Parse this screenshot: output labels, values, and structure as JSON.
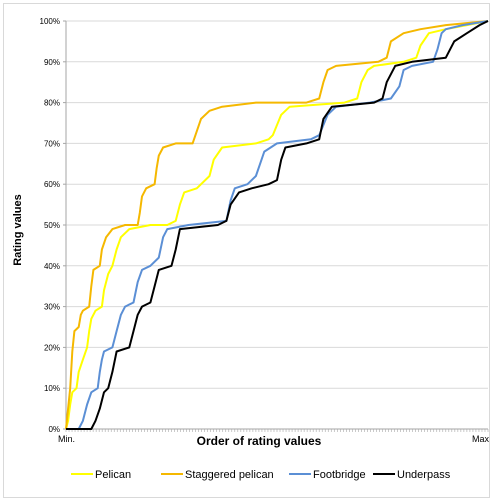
{
  "chart_data": {
    "type": "line",
    "title": "",
    "xlabel": "Order of rating values",
    "ylabel": "Rating values",
    "x_tick_labels": [
      "Min.",
      "Max"
    ],
    "y_ticks": [
      "0%",
      "10%",
      "20%",
      "30%",
      "40%",
      "50%",
      "60%",
      "70%",
      "80%",
      "90%",
      "100%"
    ],
    "ylim": [
      0,
      100
    ],
    "xlim": [
      0,
      1
    ],
    "grid": true,
    "legend_position": "bottom",
    "series": [
      {
        "name": "Pelican",
        "color": "#ffff00",
        "points": [
          [
            0,
            0
          ],
          [
            0.005,
            2
          ],
          [
            0.01,
            6
          ],
          [
            0.015,
            9
          ],
          [
            0.025,
            10
          ],
          [
            0.03,
            14
          ],
          [
            0.04,
            17
          ],
          [
            0.05,
            20
          ],
          [
            0.055,
            24
          ],
          [
            0.06,
            27
          ],
          [
            0.07,
            29
          ],
          [
            0.085,
            30
          ],
          [
            0.09,
            34
          ],
          [
            0.1,
            38
          ],
          [
            0.11,
            40
          ],
          [
            0.12,
            44
          ],
          [
            0.13,
            47
          ],
          [
            0.15,
            49
          ],
          [
            0.2,
            50
          ],
          [
            0.24,
            50
          ],
          [
            0.26,
            51
          ],
          [
            0.27,
            55
          ],
          [
            0.28,
            58
          ],
          [
            0.31,
            59
          ],
          [
            0.34,
            62
          ],
          [
            0.35,
            66
          ],
          [
            0.37,
            69
          ],
          [
            0.45,
            70
          ],
          [
            0.48,
            71
          ],
          [
            0.49,
            72
          ],
          [
            0.51,
            77
          ],
          [
            0.53,
            79
          ],
          [
            0.66,
            80
          ],
          [
            0.69,
            81
          ],
          [
            0.7,
            85
          ],
          [
            0.715,
            88
          ],
          [
            0.73,
            89
          ],
          [
            0.8,
            90
          ],
          [
            0.83,
            91
          ],
          [
            0.84,
            94
          ],
          [
            0.86,
            97
          ],
          [
            0.9,
            98
          ],
          [
            0.95,
            99
          ],
          [
            1,
            100
          ]
        ]
      },
      {
        "name": "Staggered pelican",
        "color": "#f5b800",
        "points": [
          [
            0,
            0
          ],
          [
            0.005,
            5
          ],
          [
            0.01,
            10
          ],
          [
            0.015,
            19
          ],
          [
            0.02,
            24
          ],
          [
            0.03,
            25
          ],
          [
            0.035,
            28
          ],
          [
            0.04,
            29
          ],
          [
            0.055,
            30
          ],
          [
            0.06,
            35
          ],
          [
            0.065,
            39
          ],
          [
            0.08,
            40
          ],
          [
            0.085,
            44
          ],
          [
            0.095,
            47
          ],
          [
            0.11,
            49
          ],
          [
            0.14,
            50
          ],
          [
            0.17,
            50
          ],
          [
            0.175,
            53
          ],
          [
            0.18,
            57
          ],
          [
            0.19,
            59
          ],
          [
            0.21,
            60
          ],
          [
            0.215,
            64
          ],
          [
            0.22,
            67
          ],
          [
            0.23,
            69
          ],
          [
            0.26,
            70
          ],
          [
            0.3,
            70
          ],
          [
            0.31,
            73
          ],
          [
            0.32,
            76
          ],
          [
            0.34,
            78
          ],
          [
            0.37,
            79
          ],
          [
            0.45,
            80
          ],
          [
            0.57,
            80
          ],
          [
            0.6,
            81
          ],
          [
            0.61,
            85
          ],
          [
            0.62,
            88
          ],
          [
            0.64,
            89
          ],
          [
            0.74,
            90
          ],
          [
            0.76,
            91
          ],
          [
            0.77,
            95
          ],
          [
            0.8,
            97
          ],
          [
            0.84,
            98
          ],
          [
            0.9,
            99
          ],
          [
            1,
            100
          ]
        ]
      },
      {
        "name": "Footbridge",
        "color": "#5b8fd5",
        "points": [
          [
            0,
            0
          ],
          [
            0.03,
            0
          ],
          [
            0.04,
            2
          ],
          [
            0.05,
            6
          ],
          [
            0.06,
            9
          ],
          [
            0.075,
            10
          ],
          [
            0.08,
            14
          ],
          [
            0.085,
            17
          ],
          [
            0.09,
            19
          ],
          [
            0.11,
            20
          ],
          [
            0.12,
            24
          ],
          [
            0.13,
            28
          ],
          [
            0.14,
            30
          ],
          [
            0.16,
            31
          ],
          [
            0.17,
            36
          ],
          [
            0.18,
            39
          ],
          [
            0.2,
            40
          ],
          [
            0.22,
            42
          ],
          [
            0.23,
            47
          ],
          [
            0.24,
            49
          ],
          [
            0.29,
            50
          ],
          [
            0.38,
            51
          ],
          [
            0.39,
            56
          ],
          [
            0.4,
            59
          ],
          [
            0.43,
            60
          ],
          [
            0.45,
            62
          ],
          [
            0.46,
            65
          ],
          [
            0.47,
            68
          ],
          [
            0.5,
            70
          ],
          [
            0.58,
            71
          ],
          [
            0.6,
            72
          ],
          [
            0.62,
            77
          ],
          [
            0.64,
            79
          ],
          [
            0.72,
            80
          ],
          [
            0.77,
            81
          ],
          [
            0.79,
            84
          ],
          [
            0.8,
            88
          ],
          [
            0.82,
            89
          ],
          [
            0.87,
            90
          ],
          [
            0.88,
            93
          ],
          [
            0.89,
            97
          ],
          [
            0.9,
            98
          ],
          [
            0.94,
            99
          ],
          [
            1,
            100
          ]
        ]
      },
      {
        "name": "Underpass",
        "color": "#000000",
        "points": [
          [
            0,
            0
          ],
          [
            0.06,
            0
          ],
          [
            0.07,
            2
          ],
          [
            0.08,
            5
          ],
          [
            0.09,
            9
          ],
          [
            0.1,
            10
          ],
          [
            0.11,
            14
          ],
          [
            0.12,
            19
          ],
          [
            0.15,
            20
          ],
          [
            0.16,
            24
          ],
          [
            0.17,
            28
          ],
          [
            0.18,
            30
          ],
          [
            0.2,
            31
          ],
          [
            0.21,
            35
          ],
          [
            0.22,
            39
          ],
          [
            0.25,
            40
          ],
          [
            0.26,
            44
          ],
          [
            0.27,
            49
          ],
          [
            0.36,
            50
          ],
          [
            0.38,
            51
          ],
          [
            0.39,
            55
          ],
          [
            0.41,
            58
          ],
          [
            0.44,
            59
          ],
          [
            0.48,
            60
          ],
          [
            0.5,
            61
          ],
          [
            0.51,
            66
          ],
          [
            0.52,
            69
          ],
          [
            0.57,
            70
          ],
          [
            0.6,
            71
          ],
          [
            0.61,
            76
          ],
          [
            0.63,
            79
          ],
          [
            0.73,
            80
          ],
          [
            0.75,
            81
          ],
          [
            0.76,
            85
          ],
          [
            0.78,
            89
          ],
          [
            0.82,
            90
          ],
          [
            0.9,
            91
          ],
          [
            0.92,
            95
          ],
          [
            0.95,
            97
          ],
          [
            0.98,
            99
          ],
          [
            1,
            100
          ]
        ]
      }
    ]
  }
}
